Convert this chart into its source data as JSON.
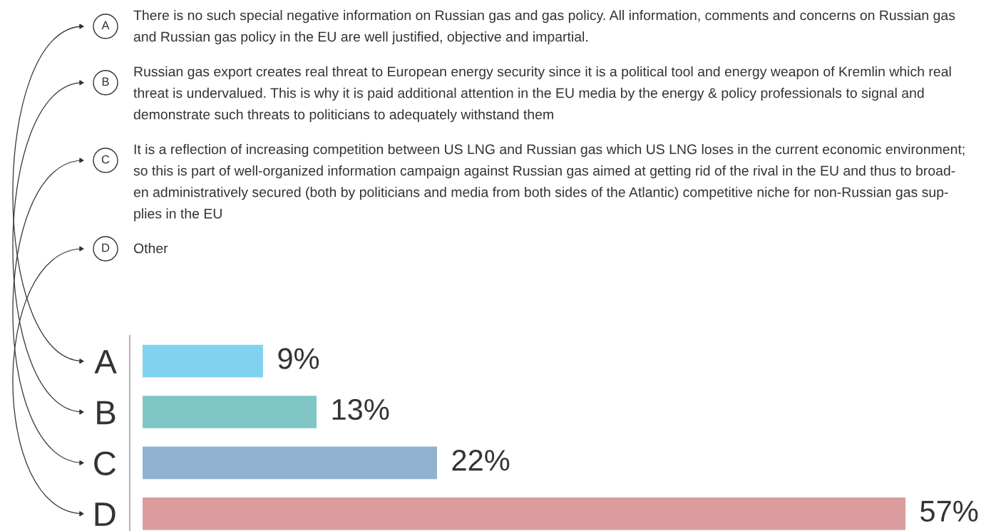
{
  "chart_data": {
    "type": "bar",
    "orientation": "horizontal",
    "categories": [
      "A",
      "B",
      "C",
      "D"
    ],
    "values": [
      9,
      13,
      22,
      57
    ],
    "colors": [
      "#80d2f0",
      "#80c6c6",
      "#90b2cf",
      "#da9c9c"
    ],
    "value_labels": [
      "9%",
      "13%",
      "22%",
      "57%"
    ],
    "tick_labels": "y",
    "grid": false,
    "annotations": [
      "There is no such special negative information on Russian gas and gas policy. All information, comments and concerns on Russian gas\nand Russian gas policy in the EU are well justified, objective and impartial.",
      "Russian gas export creates real threat to European energy security since it is a political tool and energy weapon of Kremlin which real\nthreat is undervalued. This is why it is paid additional attention in the EU media by the energy & policy professionals to signal and\ndemonstrate such threats to politicians to adequately withstand them",
      "It is a reflection of increasing competition between US LNG and Russian gas which US LNG loses in the current economic environment;\nso this is part of well-organized information campaign against Russian gas aimed at getting rid of the rival in the EU and thus to broad-\nen administratively secured (both by politicians and media from both sides of the Atlantic) competitive niche for non-Russian gas sup-\nplies in the EU",
      "Other"
    ]
  }
}
